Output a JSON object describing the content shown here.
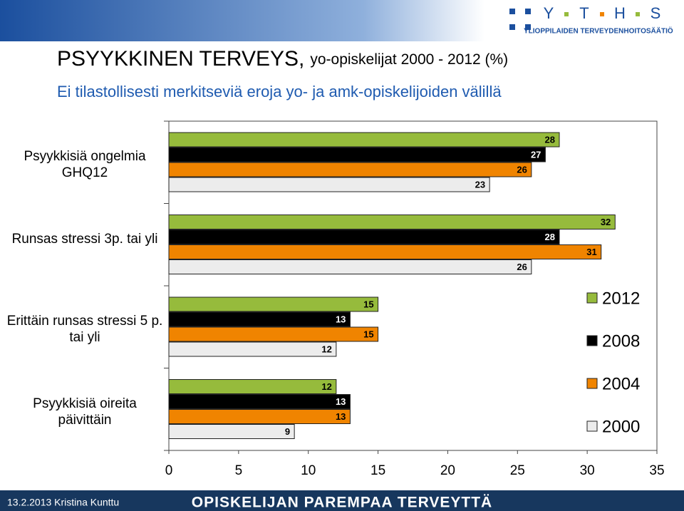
{
  "header": {
    "logo_letters": [
      "Y",
      "T",
      "H",
      "S"
    ],
    "logo_subtitle": "YLIOPPILAIDEN TERVEYDENHOITOSÄÄTIÖ"
  },
  "chart_data": {
    "type": "bar",
    "orientation": "horizontal",
    "title": "PSYYKKINEN TERVEYS,",
    "title_detail": "yo-opiskelijat 2000 - 2012 (%)",
    "subtitle": "Ei tilastollisesti merkitseviä eroja yo- ja amk-opiskelijoiden välillä",
    "categories": [
      "Psyykkisiä ongelmia GHQ12",
      "Runsas stressi 3p. tai yli",
      "Erittäin runsas stressi 5 p. tai yli",
      "Psyykkisiä oireita päivittäin"
    ],
    "series": [
      {
        "name": "2012",
        "color": "#96bb3c",
        "values": [
          28,
          32,
          15,
          12
        ]
      },
      {
        "name": "2008",
        "color": "#000000",
        "values": [
          27,
          28,
          13,
          13
        ]
      },
      {
        "name": "2004",
        "color": "#f08400",
        "values": [
          26,
          31,
          15,
          13
        ]
      },
      {
        "name": "2000",
        "color": "#ececec",
        "values": [
          23,
          26,
          12,
          9
        ]
      }
    ],
    "xlim": [
      0,
      35
    ],
    "xticks": [
      0,
      5,
      10,
      15,
      20,
      25,
      30,
      35
    ],
    "legend": "right"
  },
  "footer": {
    "date_author": "13.2.2013 Kristina Kunttu",
    "slogan": "OPISKELIJAN PAREMPAA TERVEYTTÄ"
  }
}
